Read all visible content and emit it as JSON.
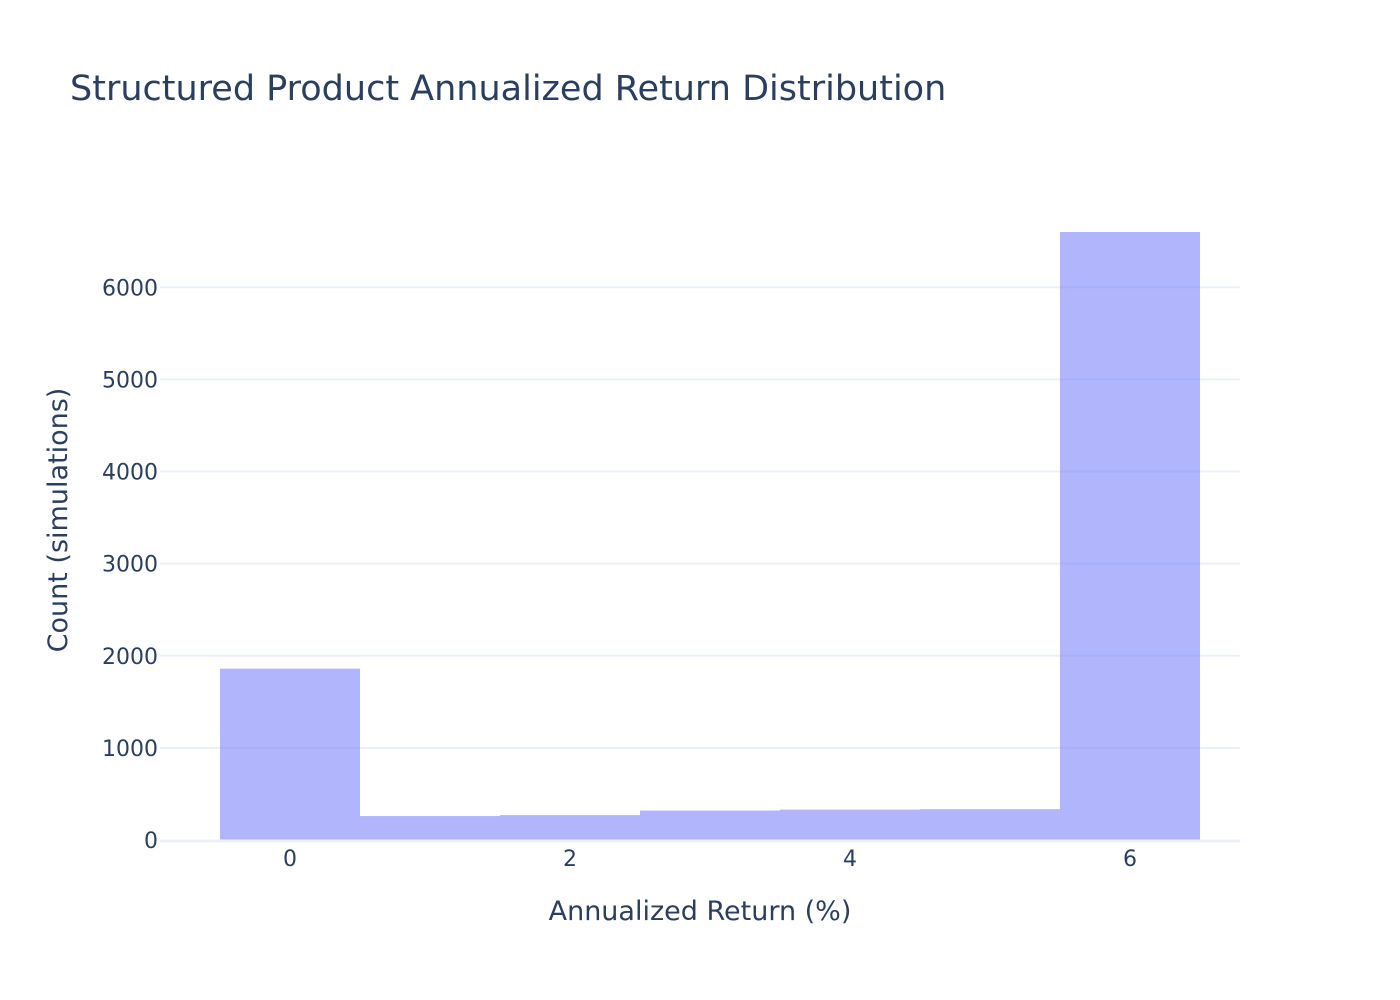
{
  "chart_data": {
    "type": "bar",
    "title": "Structured Product Annualized Return Distribution",
    "xlabel": "Annualized Return (%)",
    "ylabel": "Count (simulations)",
    "bar_color": "#636efa",
    "bar_opacity": 0.5,
    "grid": true,
    "legend": "none",
    "xlim": [
      -0.5,
      6.5
    ],
    "ylim": [
      0,
      6600
    ],
    "x_ticks": [
      {
        "value": 0,
        "label": "0"
      },
      {
        "value": 2,
        "label": "2"
      },
      {
        "value": 4,
        "label": "4"
      },
      {
        "value": 6,
        "label": "6"
      }
    ],
    "y_ticks": [
      {
        "value": 0,
        "label": "0"
      },
      {
        "value": 1000,
        "label": "1000"
      },
      {
        "value": 2000,
        "label": "2000"
      },
      {
        "value": 3000,
        "label": "3000"
      },
      {
        "value": 4000,
        "label": "4000"
      },
      {
        "value": 5000,
        "label": "5000"
      },
      {
        "value": 6000,
        "label": "6000"
      }
    ],
    "bins": [
      {
        "x0": -0.5,
        "x1": 0.5,
        "count": 1860
      },
      {
        "x0": 0.5,
        "x1": 1.5,
        "count": 260
      },
      {
        "x0": 1.5,
        "x1": 2.5,
        "count": 270
      },
      {
        "x0": 2.5,
        "x1": 3.5,
        "count": 320
      },
      {
        "x0": 3.5,
        "x1": 4.5,
        "count": 330
      },
      {
        "x0": 4.5,
        "x1": 5.5,
        "count": 335
      },
      {
        "x0": 5.5,
        "x1": 6.5,
        "count": 6600
      }
    ]
  }
}
